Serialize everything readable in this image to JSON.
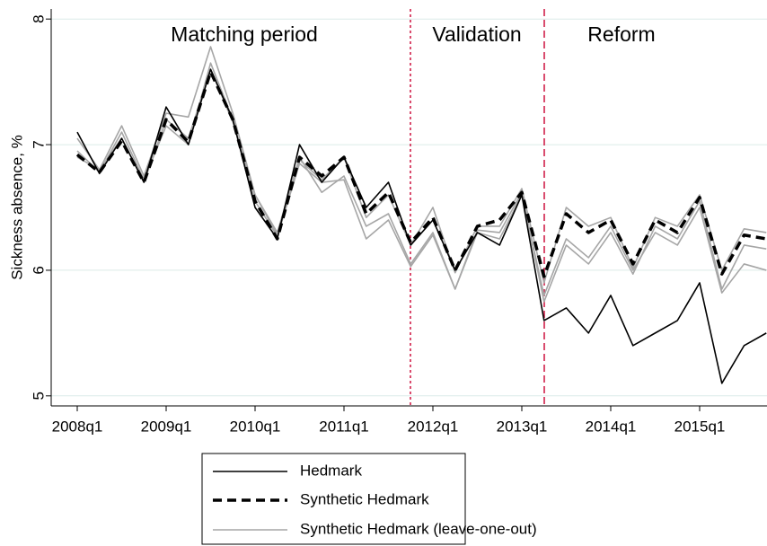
{
  "chart_data": {
    "type": "line",
    "ylabel": "Sickness absence, %",
    "annotations": [
      "Matching period",
      "Validation",
      "Reform"
    ],
    "categories": [
      "2008q1",
      null,
      null,
      null,
      "2009q1",
      null,
      null,
      null,
      "2010q1",
      null,
      null,
      null,
      "2011q1",
      null,
      null,
      null,
      "2012q1",
      null,
      null,
      null,
      "2013q1",
      null,
      null,
      null,
      "2014q1",
      null,
      null,
      null,
      "2015q1",
      null,
      null,
      null
    ],
    "ylim": [
      4.92,
      8.08
    ],
    "yticks": [
      5,
      6,
      7,
      8
    ],
    "grid": true,
    "legend": "bottom",
    "series": [
      {
        "name": "Hedmark",
        "color": "#000000",
        "dash": false,
        "width": 1.6,
        "values": [
          7.1,
          6.77,
          7.05,
          6.7,
          7.3,
          7.0,
          7.6,
          7.2,
          6.5,
          6.25,
          7.0,
          6.7,
          6.9,
          6.5,
          6.7,
          6.2,
          6.4,
          6.0,
          6.3,
          6.2,
          6.6,
          5.6,
          5.7,
          5.5,
          5.8,
          5.4,
          5.5,
          5.6,
          5.9,
          5.1,
          5.4,
          5.5
        ]
      },
      {
        "name": "Synthetic Hedmark",
        "color": "#000000",
        "dash": true,
        "width": 3.5,
        "values": [
          6.92,
          6.78,
          7.03,
          6.7,
          7.2,
          7.02,
          7.58,
          7.2,
          6.55,
          6.25,
          6.9,
          6.75,
          6.9,
          6.45,
          6.62,
          6.22,
          6.42,
          6.0,
          6.35,
          6.4,
          6.62,
          5.95,
          6.45,
          6.3,
          6.4,
          6.05,
          6.4,
          6.3,
          6.58,
          5.97,
          6.28,
          6.25
        ]
      },
      {
        "name": "Synthetic Hedmark (leave-one-out)",
        "color": "#a6a6a6",
        "dash": false,
        "width": 1.6,
        "values": [
          7.05,
          6.8,
          7.15,
          6.75,
          7.25,
          7.22,
          7.78,
          7.25,
          6.6,
          6.3,
          6.9,
          6.62,
          6.75,
          6.35,
          6.45,
          6.05,
          6.3,
          5.85,
          6.3,
          6.25,
          6.6,
          5.8,
          6.25,
          6.1,
          6.35,
          6.0,
          6.3,
          6.2,
          6.5,
          5.82,
          6.05,
          6.0
        ]
      },
      {
        "color": "#a6a6a6",
        "dash": false,
        "width": 1.6,
        "values": [
          6.95,
          6.78,
          7.1,
          6.72,
          7.15,
          7.0,
          7.65,
          7.2,
          6.55,
          6.27,
          6.85,
          6.7,
          6.72,
          6.25,
          6.4,
          6.03,
          6.28,
          5.85,
          6.32,
          6.3,
          6.62,
          5.75,
          6.2,
          6.05,
          6.3,
          5.97,
          6.35,
          6.25,
          6.55,
          5.85,
          6.2,
          6.17
        ]
      },
      {
        "color": "#a6a6a6",
        "dash": false,
        "width": 1.6,
        "values": [
          6.9,
          6.8,
          7.05,
          6.7,
          7.2,
          7.05,
          7.6,
          7.18,
          6.6,
          6.28,
          6.88,
          6.72,
          6.9,
          6.42,
          6.6,
          6.2,
          6.5,
          5.98,
          6.35,
          6.35,
          6.65,
          5.9,
          6.5,
          6.35,
          6.42,
          6.02,
          6.42,
          6.35,
          6.6,
          6.0,
          6.33,
          6.3
        ]
      }
    ]
  }
}
